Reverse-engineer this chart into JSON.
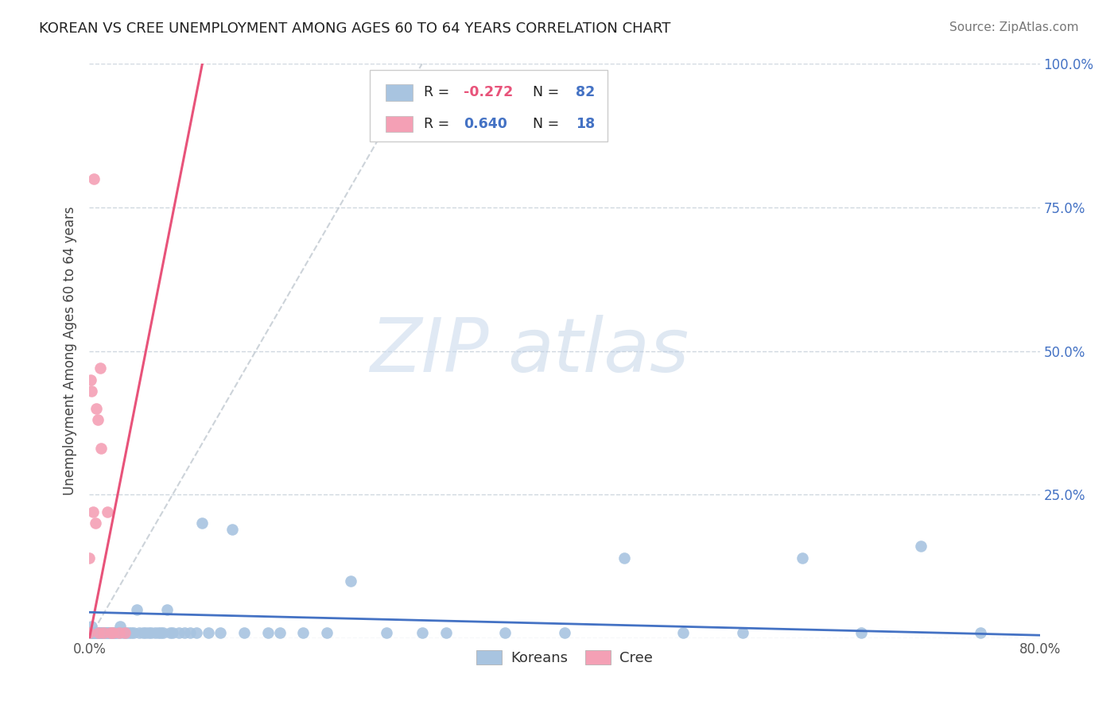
{
  "title": "KOREAN VS CREE UNEMPLOYMENT AMONG AGES 60 TO 64 YEARS CORRELATION CHART",
  "source": "Source: ZipAtlas.com",
  "ylabel": "Unemployment Among Ages 60 to 64 years",
  "xlim": [
    0,
    0.8
  ],
  "ylim": [
    0,
    1.0
  ],
  "xtick_positions": [
    0.0,
    0.1,
    0.2,
    0.3,
    0.4,
    0.5,
    0.6,
    0.7,
    0.8
  ],
  "xticklabels": [
    "0.0%",
    "",
    "",
    "",
    "",
    "",
    "",
    "",
    "80.0%"
  ],
  "ytick_positions": [
    0.0,
    0.25,
    0.5,
    0.75,
    1.0
  ],
  "yticklabels_right": [
    "",
    "25.0%",
    "50.0%",
    "75.0%",
    "100.0%"
  ],
  "korean_color": "#a8c4e0",
  "cree_color": "#f4a0b5",
  "korean_line_color": "#4472c4",
  "cree_line_color": "#e8537a",
  "trend_line_gray": "#c0c8d0",
  "background_color": "#ffffff",
  "grid_color": "#d0d8e0",
  "R_korean": -0.272,
  "N_korean": 82,
  "R_cree": 0.64,
  "N_cree": 18,
  "legend_labels": [
    "Koreans",
    "Cree"
  ],
  "watermark_zip": "ZIP",
  "watermark_atlas": "atlas",
  "korean_x": [
    0.0,
    0.0,
    0.0,
    0.001,
    0.001,
    0.002,
    0.002,
    0.003,
    0.003,
    0.004,
    0.004,
    0.005,
    0.005,
    0.006,
    0.006,
    0.007,
    0.008,
    0.008,
    0.009,
    0.009,
    0.01,
    0.01,
    0.011,
    0.012,
    0.013,
    0.014,
    0.015,
    0.016,
    0.017,
    0.018,
    0.019,
    0.02,
    0.021,
    0.022,
    0.023,
    0.025,
    0.026,
    0.028,
    0.03,
    0.031,
    0.033,
    0.035,
    0.037,
    0.04,
    0.042,
    0.045,
    0.047,
    0.05,
    0.052,
    0.055,
    0.058,
    0.06,
    0.062,
    0.065,
    0.068,
    0.07,
    0.075,
    0.08,
    0.085,
    0.09,
    0.095,
    0.1,
    0.11,
    0.12,
    0.13,
    0.15,
    0.16,
    0.18,
    0.2,
    0.22,
    0.25,
    0.28,
    0.3,
    0.35,
    0.4,
    0.45,
    0.5,
    0.55,
    0.6,
    0.65,
    0.7,
    0.75
  ],
  "korean_y": [
    0.01,
    0.01,
    0.01,
    0.01,
    0.01,
    0.01,
    0.02,
    0.01,
    0.01,
    0.01,
    0.01,
    0.01,
    0.01,
    0.01,
    0.01,
    0.01,
    0.01,
    0.01,
    0.01,
    0.01,
    0.01,
    0.01,
    0.01,
    0.01,
    0.01,
    0.01,
    0.01,
    0.01,
    0.01,
    0.01,
    0.01,
    0.01,
    0.01,
    0.01,
    0.01,
    0.01,
    0.02,
    0.01,
    0.01,
    0.01,
    0.01,
    0.01,
    0.01,
    0.05,
    0.01,
    0.01,
    0.01,
    0.01,
    0.01,
    0.01,
    0.01,
    0.01,
    0.01,
    0.05,
    0.01,
    0.01,
    0.01,
    0.01,
    0.01,
    0.01,
    0.2,
    0.01,
    0.01,
    0.19,
    0.01,
    0.01,
    0.01,
    0.01,
    0.01,
    0.1,
    0.01,
    0.01,
    0.01,
    0.01,
    0.01,
    0.14,
    0.01,
    0.01,
    0.14,
    0.01,
    0.16,
    0.01
  ],
  "cree_x": [
    0.0,
    0.0,
    0.001,
    0.002,
    0.003,
    0.004,
    0.005,
    0.006,
    0.007,
    0.008,
    0.009,
    0.01,
    0.012,
    0.015,
    0.018,
    0.02,
    0.025,
    0.03
  ],
  "cree_y": [
    0.01,
    0.14,
    0.45,
    0.43,
    0.22,
    0.8,
    0.2,
    0.4,
    0.38,
    0.01,
    0.47,
    0.33,
    0.01,
    0.22,
    0.01,
    0.01,
    0.01,
    0.01
  ],
  "cree_line_x0": 0.0,
  "cree_line_y0": 0.0,
  "cree_line_x1": 0.095,
  "cree_line_y1": 1.0,
  "korean_line_x0": 0.0,
  "korean_line_y0": 0.045,
  "korean_line_x1": 0.8,
  "korean_line_y1": 0.005,
  "gray_line_x0": 0.0,
  "gray_line_y0": 0.0,
  "gray_line_x1": 0.28,
  "gray_line_y1": 1.0
}
